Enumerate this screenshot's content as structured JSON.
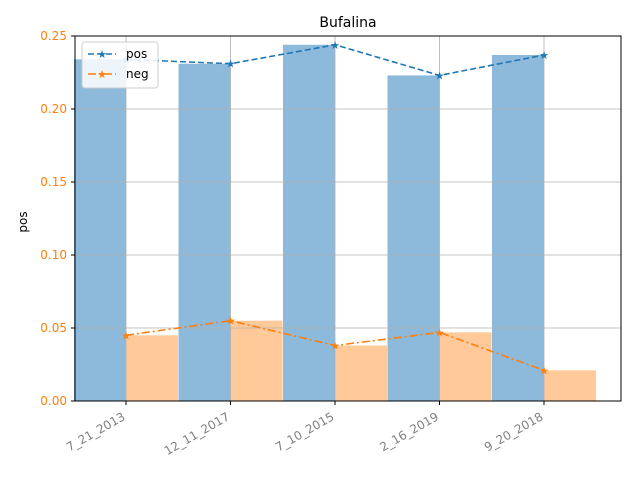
{
  "chart_data": {
    "type": "bar",
    "title": "Bufalina",
    "xlabel": "",
    "ylabel": "pos",
    "ylim": [
      0,
      0.25
    ],
    "yticks": [
      "0.00",
      "0.05",
      "0.10",
      "0.15",
      "0.20",
      "0.25"
    ],
    "categories": [
      "7_21_2013",
      "12_11_2017",
      "7_10_2015",
      "2_16_2019",
      "9_20_2018"
    ],
    "grid": true,
    "legend_position": "top-left",
    "series": [
      {
        "name": "pos",
        "values": [
          0.234,
          0.231,
          0.244,
          0.223,
          0.237
        ],
        "color": "#1f77b4",
        "bar_color": "#8db9da",
        "line_style": "dashed",
        "marker": "star"
      },
      {
        "name": "neg",
        "values": [
          0.045,
          0.055,
          0.038,
          0.047,
          0.021
        ],
        "color": "#ff7f0e",
        "bar_color": "#ffbf87",
        "line_style": "dashdot",
        "marker": "star"
      }
    ],
    "colors": {
      "tick_y": "#ff7f0e",
      "tick_x": "#808080"
    }
  }
}
